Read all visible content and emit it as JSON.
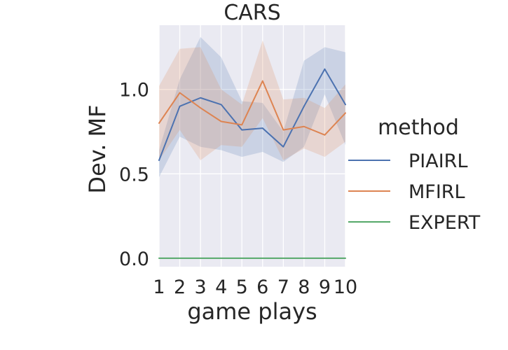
{
  "chart_data": {
    "type": "line",
    "title": "CARS",
    "xlabel": "game plays",
    "ylabel": "Dev. MF",
    "x": [
      1,
      2,
      3,
      4,
      5,
      6,
      7,
      8,
      9,
      10
    ],
    "x_tick_labels": [
      "1",
      "2",
      "3",
      "4",
      "5",
      "6",
      "7",
      "8",
      "9",
      "10"
    ],
    "y_ticks": [
      0.0,
      0.5,
      1.0
    ],
    "y_tick_labels": [
      "0.0",
      "0.5",
      "1.0"
    ],
    "xlim": [
      1,
      10
    ],
    "ylim": [
      -0.05,
      1.38
    ],
    "grid": true,
    "legend": {
      "title": "method",
      "placement": "right"
    },
    "series": [
      {
        "name": "PIAIRL",
        "color": "#4c72b0",
        "values": [
          0.58,
          0.9,
          0.95,
          0.91,
          0.76,
          0.77,
          0.66,
          0.9,
          1.12,
          0.91
        ],
        "ci_low": [
          0.48,
          0.72,
          0.66,
          0.64,
          0.6,
          0.63,
          0.57,
          0.66,
          0.97,
          0.67
        ],
        "ci_high": [
          0.64,
          1.06,
          1.31,
          1.19,
          0.93,
          0.92,
          0.75,
          1.17,
          1.25,
          1.22
        ]
      },
      {
        "name": "MFIRL",
        "color": "#dd8452",
        "values": [
          0.8,
          0.98,
          0.89,
          0.81,
          0.79,
          1.05,
          0.76,
          0.78,
          0.73,
          0.86
        ],
        "ci_low": [
          0.58,
          0.76,
          0.58,
          0.67,
          0.66,
          0.83,
          0.58,
          0.65,
          0.6,
          0.69
        ],
        "ci_high": [
          1.02,
          1.24,
          1.25,
          1.0,
          0.91,
          1.29,
          0.94,
          0.95,
          0.89,
          1.03
        ]
      },
      {
        "name": "EXPERT",
        "color": "#55a868",
        "values": [
          0,
          0,
          0,
          0,
          0,
          0,
          0,
          0,
          0,
          0
        ]
      }
    ]
  }
}
